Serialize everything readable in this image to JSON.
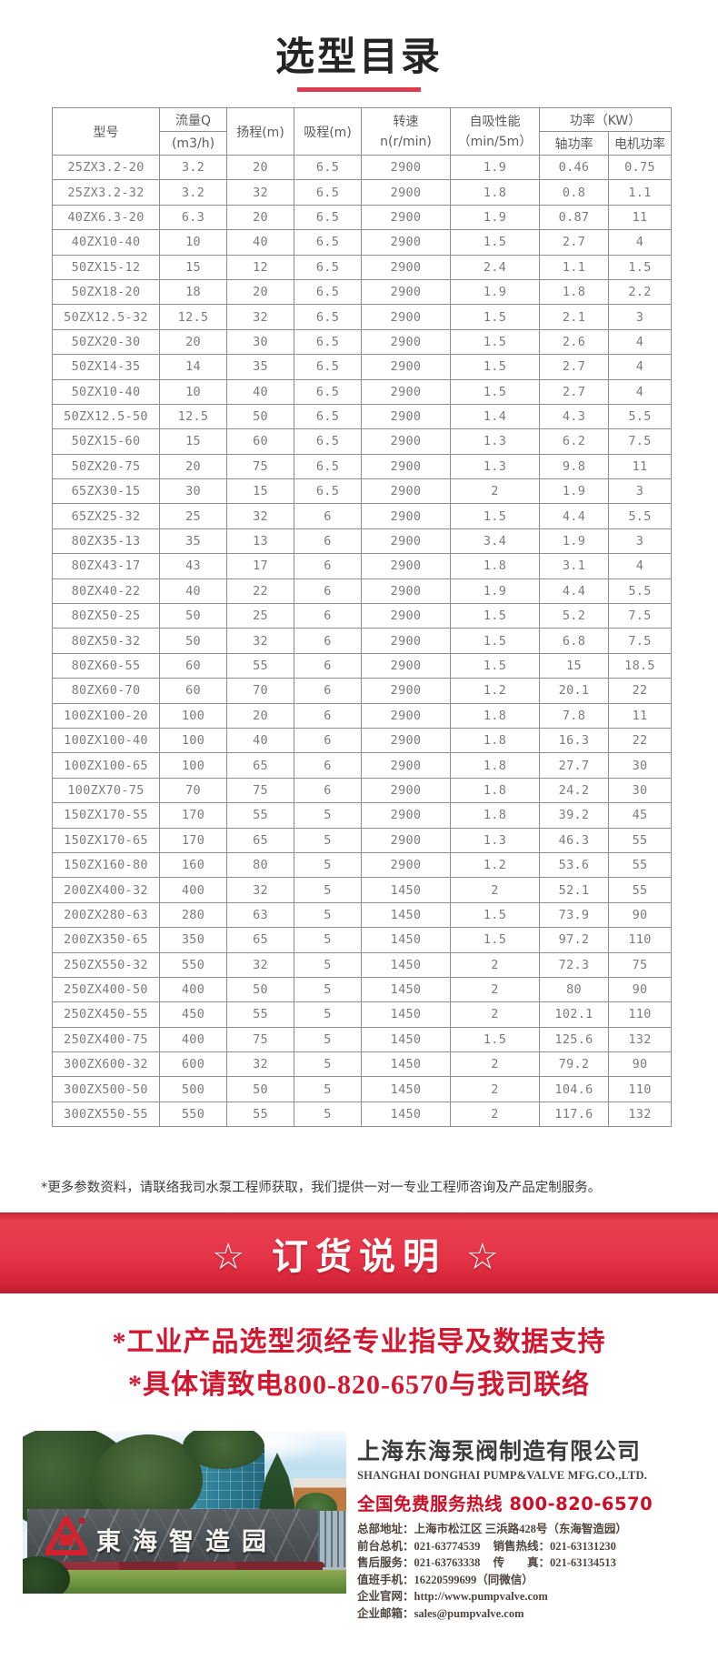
{
  "page": {
    "title": "选型目录",
    "note": "*更多参数资料，请联络我司水泵工程师获取，我们提供一对一专业工程师咨询及产品定制服务。"
  },
  "table": {
    "header": {
      "model": "型号",
      "flow_top": "流量Q",
      "flow_bottom": "(m3/h)",
      "head": "扬程(m)",
      "suction": "吸程(m)",
      "speed_top": "转速",
      "speed_bottom": "n(r/min)",
      "selfprime_top": "自吸性能",
      "selfprime_bottom": "（min/5m）",
      "power_group": "功率（KW）",
      "power_shaft": "轴功率",
      "power_motor": "电机功率"
    },
    "rows": [
      [
        "25ZX3.2-20",
        "3.2",
        "20",
        "6.5",
        "2900",
        "1.9",
        "0.46",
        "0.75"
      ],
      [
        "25ZX3.2-32",
        "3.2",
        "32",
        "6.5",
        "2900",
        "1.8",
        "0.8",
        "1.1"
      ],
      [
        "40ZX6.3-20",
        "6.3",
        "20",
        "6.5",
        "2900",
        "1.9",
        "0.87",
        "11"
      ],
      [
        "40ZX10-40",
        "10",
        "40",
        "6.5",
        "2900",
        "1.5",
        "2.7",
        "4"
      ],
      [
        "50ZX15-12",
        "15",
        "12",
        "6.5",
        "2900",
        "2.4",
        "1.1",
        "1.5"
      ],
      [
        "50ZX18-20",
        "18",
        "20",
        "6.5",
        "2900",
        "1.9",
        "1.8",
        "2.2"
      ],
      [
        "50ZX12.5-32",
        "12.5",
        "32",
        "6.5",
        "2900",
        "1.5",
        "2.1",
        "3"
      ],
      [
        "50ZX20-30",
        "20",
        "30",
        "6.5",
        "2900",
        "1.5",
        "2.6",
        "4"
      ],
      [
        "50ZX14-35",
        "14",
        "35",
        "6.5",
        "2900",
        "1.5",
        "2.7",
        "4"
      ],
      [
        "50ZX10-40",
        "10",
        "40",
        "6.5",
        "2900",
        "1.5",
        "2.7",
        "4"
      ],
      [
        "50ZX12.5-50",
        "12.5",
        "50",
        "6.5",
        "2900",
        "1.4",
        "4.3",
        "5.5"
      ],
      [
        "50ZX15-60",
        "15",
        "60",
        "6.5",
        "2900",
        "1.3",
        "6.2",
        "7.5"
      ],
      [
        "50ZX20-75",
        "20",
        "75",
        "6.5",
        "2900",
        "1.3",
        "9.8",
        "11"
      ],
      [
        "65ZX30-15",
        "30",
        "15",
        "6.5",
        "2900",
        "2",
        "1.9",
        "3"
      ],
      [
        "65ZX25-32",
        "25",
        "32",
        "6",
        "2900",
        "1.5",
        "4.4",
        "5.5"
      ],
      [
        "80ZX35-13",
        "35",
        "13",
        "6",
        "2900",
        "3.4",
        "1.9",
        "3"
      ],
      [
        "80ZX43-17",
        "43",
        "17",
        "6",
        "2900",
        "1.8",
        "3.1",
        "4"
      ],
      [
        "80ZX40-22",
        "40",
        "22",
        "6",
        "2900",
        "1.9",
        "4.4",
        "5.5"
      ],
      [
        "80ZX50-25",
        "50",
        "25",
        "6",
        "2900",
        "1.5",
        "5.2",
        "7.5"
      ],
      [
        "80ZX50-32",
        "50",
        "32",
        "6",
        "2900",
        "1.5",
        "6.8",
        "7.5"
      ],
      [
        "80ZX60-55",
        "60",
        "55",
        "6",
        "2900",
        "1.5",
        "15",
        "18.5"
      ],
      [
        "80ZX60-70",
        "60",
        "70",
        "6",
        "2900",
        "1.2",
        "20.1",
        "22"
      ],
      [
        "100ZX100-20",
        "100",
        "20",
        "6",
        "2900",
        "1.8",
        "7.8",
        "11"
      ],
      [
        "100ZX100-40",
        "100",
        "40",
        "6",
        "2900",
        "1.8",
        "16.3",
        "22"
      ],
      [
        "100ZX100-65",
        "100",
        "65",
        "6",
        "2900",
        "1.8",
        "27.7",
        "30"
      ],
      [
        "100ZX70-75",
        "70",
        "75",
        "6",
        "2900",
        "1.8",
        "24.2",
        "30"
      ],
      [
        "150ZX170-55",
        "170",
        "55",
        "5",
        "2900",
        "1.8",
        "39.2",
        "45"
      ],
      [
        "150ZX170-65",
        "170",
        "65",
        "5",
        "2900",
        "1.3",
        "46.3",
        "55"
      ],
      [
        "150ZX160-80",
        "160",
        "80",
        "5",
        "2900",
        "1.2",
        "53.6",
        "55"
      ],
      [
        "200ZX400-32",
        "400",
        "32",
        "5",
        "1450",
        "2",
        "52.1",
        "55"
      ],
      [
        "200ZX280-63",
        "280",
        "63",
        "5",
        "1450",
        "1.5",
        "73.9",
        "90"
      ],
      [
        "200ZX350-65",
        "350",
        "65",
        "5",
        "1450",
        "1.5",
        "97.2",
        "110"
      ],
      [
        "250ZX550-32",
        "550",
        "32",
        "5",
        "1450",
        "2",
        "72.3",
        "75"
      ],
      [
        "250ZX400-50",
        "400",
        "50",
        "5",
        "1450",
        "2",
        "80",
        "90"
      ],
      [
        "250ZX450-55",
        "450",
        "55",
        "5",
        "1450",
        "2",
        "102.1",
        "110"
      ],
      [
        "250ZX400-75",
        "400",
        "75",
        "5",
        "1450",
        "1.5",
        "125.6",
        "132"
      ],
      [
        "300ZX600-32",
        "600",
        "32",
        "5",
        "1450",
        "2",
        "79.2",
        "90"
      ],
      [
        "300ZX500-50",
        "500",
        "50",
        "5",
        "1450",
        "2",
        "104.6",
        "110"
      ],
      [
        "300ZX550-55",
        "550",
        "55",
        "5",
        "1450",
        "2",
        "117.6",
        "132"
      ]
    ]
  },
  "banner": {
    "title": "☆ 订货说明 ☆"
  },
  "statements": {
    "line1": "*工业产品选型须经专业指导及数据支持",
    "line2": "*具体请致电800-820-6570与我司联络"
  },
  "footer": {
    "photo_sign_text": "東海智造园",
    "company_cn": "上海东海泵阀制造有限公司",
    "company_en": "SHANGHAI DONGHAI PUMP&VALVE MFG.CO.,LTD.",
    "hotline_label": "全国免费服务热线",
    "hotline_number": "800-820-6570",
    "contacts": [
      {
        "label": "总部地址：",
        "value": "上海市松江区 三浜路428号（东海智造园）"
      },
      {
        "label": "前台总机：",
        "value": "021-63774539",
        "label2": "销售热线：",
        "value2": "021-63131230"
      },
      {
        "label": "售后服务：",
        "value": "021-63763338",
        "label2": "传　　真：",
        "value2": "021-63134513"
      },
      {
        "label": "值班手机：",
        "value": "16220599699（同微信）"
      },
      {
        "label": "企业官网：",
        "value": "http://www.pumpvalve.com"
      },
      {
        "label": "企业邮箱：",
        "value": "sales@pumpvalve.com"
      }
    ]
  },
  "colors": {
    "accent_red": "#d21730",
    "banner_red": "#e63448",
    "underline_red": "#dc3b50",
    "table_border": "#8f8f8f"
  }
}
